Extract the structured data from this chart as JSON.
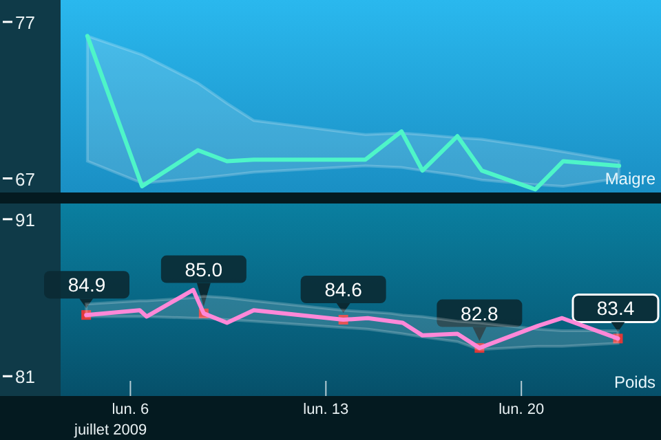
{
  "chart_data": [
    {
      "type": "line",
      "xlim": [
        "2009-07-03T12:00",
        "2009-07-25T00:00"
      ],
      "ylim": [
        66.1,
        78.4
      ],
      "yticks": [
        67,
        77
      ],
      "tick_labels": "y",
      "series": [
        {
          "name": "Maigre",
          "color": "#4ef5c8",
          "x": [
            "2009-07-04T11:00",
            "2009-07-06T10:00",
            "2009-07-08T10:00",
            "2009-07-09T11:00",
            "2009-07-10T10:00",
            "2009-07-14T10:00",
            "2009-07-15T17:00",
            "2009-07-16T11:00",
            "2009-07-17T17:00",
            "2009-07-18T14:00",
            "2009-07-20T12:00",
            "2009-07-21T12:00",
            "2009-07-23T12:00"
          ],
          "values": [
            76.1,
            66.5,
            68.8,
            68.1,
            68.2,
            68.2,
            70.0,
            67.5,
            69.7,
            67.5,
            66.3,
            68.1,
            67.8
          ],
          "upper": [
            76.1,
            74.9,
            73.1,
            71.8,
            70.7,
            69.8,
            69.9,
            69.8,
            69.6,
            69.5,
            69.0,
            68.7,
            68.1
          ],
          "lower": [
            68.1,
            66.7,
            67.0,
            67.2,
            67.4,
            67.8,
            67.7,
            67.5,
            67.2,
            66.9,
            66.6,
            66.5,
            67.0
          ]
        }
      ]
    },
    {
      "type": "line",
      "xlim": [
        "2009-07-03T12:00",
        "2009-07-25T00:00"
      ],
      "ylim": [
        79.74,
        92.0
      ],
      "yticks": [
        81,
        91
      ],
      "xticks": [
        {
          "value": "2009-07-06",
          "label": "lun. 6"
        },
        {
          "value": "2009-07-13",
          "label": "lun. 13"
        },
        {
          "value": "2009-07-20",
          "label": "lun. 20"
        }
      ],
      "xlabel": "juillet 2009",
      "series": [
        {
          "name": "Poids",
          "color": "#ff88d8",
          "x": [
            "2009-07-04T10:00",
            "2009-07-06T08:00",
            "2009-07-06T14:00",
            "2009-07-08T06:00",
            "2009-07-08T15:00",
            "2009-07-09T11:00",
            "2009-07-10T10:00",
            "2009-07-13T15:00",
            "2009-07-14T12:00",
            "2009-07-15T08:00",
            "2009-07-15T18:00",
            "2009-07-16T11:00",
            "2009-07-17T17:00",
            "2009-07-18T12:00",
            "2009-07-20T14:00",
            "2009-07-21T11:00",
            "2009-07-23T11:00"
          ],
          "values": [
            84.9,
            85.2,
            84.8,
            86.5,
            85.0,
            84.4,
            85.2,
            84.6,
            84.7,
            84.5,
            84.4,
            83.6,
            83.7,
            82.8,
            84.2,
            84.7,
            83.4
          ],
          "value_labels": [
            "84.9",
            null,
            null,
            null,
            "85.0",
            null,
            null,
            "84.6",
            null,
            null,
            null,
            null,
            null,
            "82.8",
            null,
            null,
            "83.4"
          ],
          "upper": [
            85.6,
            85.8,
            85.8,
            86.0,
            86.1,
            86.0,
            85.8,
            85.2,
            85.1,
            85.0,
            84.9,
            84.8,
            84.5,
            84.4,
            84.0,
            83.9,
            83.9
          ],
          "lower": [
            84.8,
            84.8,
            84.8,
            84.7,
            84.7,
            84.6,
            84.5,
            84.1,
            84.0,
            83.8,
            83.7,
            83.5,
            83.2,
            82.7,
            82.9,
            82.9,
            83.1
          ]
        }
      ]
    }
  ]
}
